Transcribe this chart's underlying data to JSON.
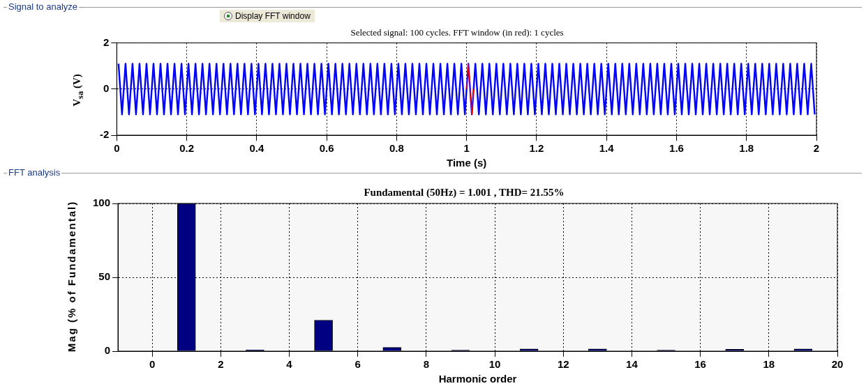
{
  "chart_data": [
    {
      "type": "line",
      "title": "Selected signal: 100 cycles. FFT window (in red): 1 cycles",
      "xlabel": "Time (s)",
      "ylabel": "V$_{sa}$ (V)",
      "annotations": [
        "Signal to analyze",
        "Display FFT window"
      ],
      "xlim": [
        0,
        2
      ],
      "xticks": [
        0,
        0.2,
        0.4,
        0.6,
        0.8,
        1,
        1.2,
        1.4,
        1.6,
        1.8,
        2
      ],
      "ylim": [
        -2,
        2
      ],
      "yticks": [
        -2,
        0,
        2
      ],
      "grid": true,
      "legend": false,
      "marker": "none",
      "series": [
        {
          "color": "#0000ff",
          "x": [
            0.005,
            0.015,
            0.025,
            0.035,
            0.045,
            0.055,
            0.065,
            0.075,
            0.085,
            0.095,
            0.105,
            0.115,
            0.125,
            0.135,
            0.145,
            0.155,
            0.165,
            0.175,
            0.185,
            0.195,
            0.205,
            0.215,
            0.225,
            0.235,
            0.245,
            0.255,
            0.265,
            0.275,
            0.285,
            0.295,
            0.305,
            0.315,
            0.325,
            0.335,
            0.345,
            0.355,
            0.365,
            0.375,
            0.385,
            0.395,
            0.405,
            0.415,
            0.425,
            0.435,
            0.445,
            0.455,
            0.465,
            0.475,
            0.485,
            0.495,
            0.505,
            0.515,
            0.525,
            0.535,
            0.545,
            0.555,
            0.565,
            0.575,
            0.585,
            0.595,
            0.605,
            0.615,
            0.625,
            0.635,
            0.645,
            0.655,
            0.665,
            0.675,
            0.685,
            0.695,
            0.705,
            0.715,
            0.725,
            0.735,
            0.745,
            0.755,
            0.765,
            0.775,
            0.785,
            0.795,
            0.805,
            0.815,
            0.825,
            0.835,
            0.845,
            0.855,
            0.865,
            0.875,
            0.885,
            0.895,
            0.905,
            0.915,
            0.925,
            0.935,
            0.945,
            0.955,
            0.965,
            0.975,
            0.985,
            0.995,
            1.005,
            1.015,
            1.025,
            1.035,
            1.045,
            1.055,
            1.065,
            1.075,
            1.085,
            1.095,
            1.105,
            1.115,
            1.125,
            1.135,
            1.145,
            1.155,
            1.165,
            1.175,
            1.185,
            1.195,
            1.205,
            1.215,
            1.225,
            1.235,
            1.245,
            1.255,
            1.265,
            1.275,
            1.285,
            1.295,
            1.305,
            1.315,
            1.325,
            1.335,
            1.345,
            1.355,
            1.365,
            1.375,
            1.385,
            1.395,
            1.405,
            1.415,
            1.425,
            1.435,
            1.445,
            1.455,
            1.465,
            1.475,
            1.485,
            1.495,
            1.505,
            1.515,
            1.525,
            1.535,
            1.545,
            1.555,
            1.565,
            1.575,
            1.585,
            1.595,
            1.605,
            1.615,
            1.625,
            1.635,
            1.645,
            1.655,
            1.665,
            1.675,
            1.685,
            1.695,
            1.705,
            1.715,
            1.725,
            1.735,
            1.745,
            1.755,
            1.765,
            1.775,
            1.785,
            1.795,
            1.805,
            1.815,
            1.825,
            1.835,
            1.845,
            1.855,
            1.865,
            1.875,
            1.885,
            1.895,
            1.905,
            1.915,
            1.925,
            1.935,
            1.945,
            1.955,
            1.965,
            1.975,
            1.985,
            1.995
          ],
          "values": [
            1.1,
            -1.1,
            1.1,
            -1.1,
            1.1,
            -1.1,
            1.1,
            -1.1,
            1.1,
            -1.1,
            1.1,
            -1.1,
            1.1,
            -1.1,
            1.1,
            -1.1,
            1.1,
            -1.1,
            1.1,
            -1.1,
            1.1,
            -1.1,
            1.1,
            -1.1,
            1.1,
            -1.1,
            1.1,
            -1.1,
            1.1,
            -1.1,
            1.1,
            -1.1,
            1.1,
            -1.1,
            1.1,
            -1.1,
            1.1,
            -1.1,
            1.1,
            -1.1,
            1.1,
            -1.1,
            1.1,
            -1.1,
            1.1,
            -1.1,
            1.1,
            -1.1,
            1.1,
            -1.1,
            1.1,
            -1.1,
            1.1,
            -1.1,
            1.1,
            -1.1,
            1.1,
            -1.1,
            1.1,
            -1.1,
            1.1,
            -1.1,
            1.1,
            -1.1,
            1.1,
            -1.1,
            1.1,
            -1.1,
            1.1,
            -1.1,
            1.1,
            -1.1,
            1.1,
            -1.1,
            1.1,
            -1.1,
            1.1,
            -1.1,
            1.1,
            -1.1,
            1.1,
            -1.1,
            1.1,
            -1.1,
            1.1,
            -1.1,
            1.1,
            -1.1,
            1.1,
            -1.1,
            1.1,
            -1.1,
            1.1,
            -1.1,
            1.1,
            -1.1,
            1.1,
            -1.1,
            1.1,
            -1.1,
            1.1,
            -1.1,
            1.1,
            -1.1,
            1.1,
            -1.1,
            1.1,
            -1.1,
            1.1,
            -1.1,
            1.1,
            -1.1,
            1.1,
            -1.1,
            1.1,
            -1.1,
            1.1,
            -1.1,
            1.1,
            -1.1,
            1.1,
            -1.1,
            1.1,
            -1.1,
            1.1,
            -1.1,
            1.1,
            -1.1,
            1.1,
            -1.1,
            1.1,
            -1.1,
            1.1,
            -1.1,
            1.1,
            -1.1,
            1.1,
            -1.1,
            1.1,
            -1.1,
            1.1,
            -1.1,
            1.1,
            -1.1,
            1.1,
            -1.1,
            1.1,
            -1.1,
            1.1,
            -1.1,
            1.1,
            -1.1,
            1.1,
            -1.1,
            1.1,
            -1.1,
            1.1,
            -1.1,
            1.1,
            -1.1,
            1.1,
            -1.1,
            1.1,
            -1.1,
            1.1,
            -1.1,
            1.1,
            -1.1,
            1.1,
            -1.1,
            1.1,
            -1.1,
            1.1,
            -1.1,
            1.1,
            -1.1,
            1.1,
            -1.1,
            1.1,
            -1.1,
            1.1,
            -1.1,
            1.1,
            -1.1,
            1.1,
            -1.1,
            1.1,
            -1.1,
            1.1,
            -1.1,
            1.1,
            -1.1,
            1.1,
            -1.1,
            1.1,
            -1.1,
            1.1,
            -1.1,
            1.1,
            -1.1
          ]
        },
        {
          "color": "#ff0000",
          "x": [
            1.0,
            1.005,
            1.015,
            1.02
          ],
          "values": [
            0,
            1.1,
            -1.1,
            0
          ]
        }
      ]
    },
    {
      "type": "bar",
      "title": "Fundamental (50Hz) = 1.001 , THD= 21.55%",
      "xlabel": "Harmonic order",
      "ylabel": "Mag (% of Fundamental)",
      "annotations": [
        "FFT analysis"
      ],
      "xlim": [
        -1,
        20
      ],
      "xticks": [
        0,
        2,
        4,
        6,
        8,
        10,
        12,
        14,
        16,
        18,
        20
      ],
      "ylim": [
        0,
        100
      ],
      "yticks": [
        0,
        50,
        100
      ],
      "grid": true,
      "legend": false,
      "x": [
        1,
        3,
        5,
        7,
        9,
        11,
        13,
        15,
        17,
        19
      ],
      "values": [
        100,
        0.8,
        21,
        2.5,
        0.7,
        1.5,
        1.5,
        0.7,
        1.3,
        1.5
      ],
      "color": "#000080"
    }
  ]
}
